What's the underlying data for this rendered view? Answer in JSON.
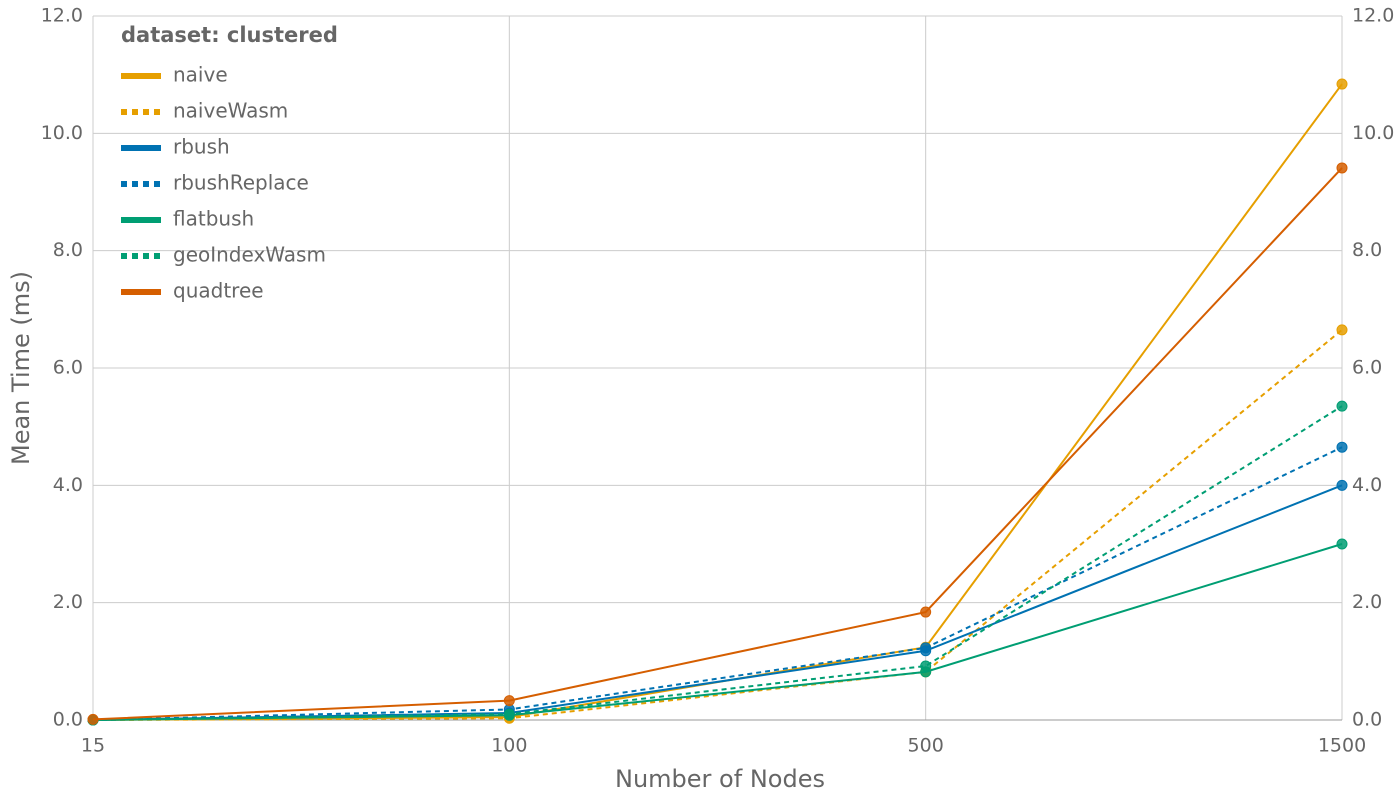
{
  "chart_data": {
    "type": "line",
    "x_label": "Number of Nodes",
    "y_label": "Mean Time (ms)",
    "legend_title": "dataset: clustered",
    "legend_position": "top-left",
    "categories": [
      "15",
      "100",
      "500",
      "1500"
    ],
    "ylim": [
      0,
      12
    ],
    "yticks": [
      {
        "value": 0,
        "label": "0.0"
      },
      {
        "value": 2,
        "label": "2.0"
      },
      {
        "value": 4,
        "label": "4.0"
      },
      {
        "value": 6,
        "label": "6.0"
      },
      {
        "value": 8,
        "label": "8.0"
      },
      {
        "value": 10,
        "label": "10.0"
      },
      {
        "value": 12,
        "label": "12.0"
      }
    ],
    "grid": true,
    "mirror_y_axis": true,
    "markers": true,
    "series": [
      {
        "name": "naive",
        "color": "#e69f00",
        "line_style": "solid",
        "values": [
          0.0,
          0.05,
          1.24,
          10.84
        ]
      },
      {
        "name": "naiveWasm",
        "color": "#e69f00",
        "line_style": "dotted",
        "values": [
          0.0,
          0.03,
          0.82,
          6.65
        ]
      },
      {
        "name": "rbush",
        "color": "#0072b2",
        "line_style": "solid",
        "values": [
          0.0,
          0.12,
          1.18,
          4.0
        ]
      },
      {
        "name": "rbushReplace",
        "color": "#0072b2",
        "line_style": "dotted",
        "values": [
          0.0,
          0.18,
          1.23,
          4.65
        ]
      },
      {
        "name": "flatbush",
        "color": "#009e73",
        "line_style": "solid",
        "values": [
          0.0,
          0.08,
          0.82,
          3.0
        ]
      },
      {
        "name": "geoIndexWasm",
        "color": "#009e73",
        "line_style": "dotted",
        "values": [
          0.0,
          0.1,
          0.92,
          5.35
        ]
      },
      {
        "name": "quadtree",
        "color": "#d55e00",
        "line_style": "solid",
        "values": [
          0.01,
          0.33,
          1.84,
          9.41
        ]
      }
    ]
  }
}
